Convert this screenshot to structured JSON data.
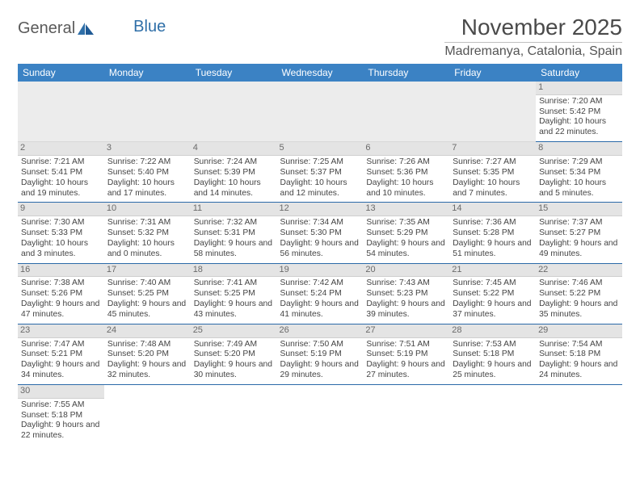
{
  "logo": {
    "text1": "General",
    "text2": "Blue"
  },
  "title": "November 2025",
  "location": "Madremanya, Catalonia, Spain",
  "colors": {
    "header_bg": "#3b82c4",
    "header_fg": "#ffffff",
    "daynum_bg": "#e4e4e4",
    "row_divider": "#2b6aa8",
    "blank_bg": "#ececec"
  },
  "day_headers": [
    "Sunday",
    "Monday",
    "Tuesday",
    "Wednesday",
    "Thursday",
    "Friday",
    "Saturday"
  ],
  "weeks": [
    [
      null,
      null,
      null,
      null,
      null,
      null,
      {
        "n": "1",
        "sr": "7:20 AM",
        "ss": "5:42 PM",
        "dl": "10 hours and 22 minutes."
      }
    ],
    [
      {
        "n": "2",
        "sr": "7:21 AM",
        "ss": "5:41 PM",
        "dl": "10 hours and 19 minutes."
      },
      {
        "n": "3",
        "sr": "7:22 AM",
        "ss": "5:40 PM",
        "dl": "10 hours and 17 minutes."
      },
      {
        "n": "4",
        "sr": "7:24 AM",
        "ss": "5:39 PM",
        "dl": "10 hours and 14 minutes."
      },
      {
        "n": "5",
        "sr": "7:25 AM",
        "ss": "5:37 PM",
        "dl": "10 hours and 12 minutes."
      },
      {
        "n": "6",
        "sr": "7:26 AM",
        "ss": "5:36 PM",
        "dl": "10 hours and 10 minutes."
      },
      {
        "n": "7",
        "sr": "7:27 AM",
        "ss": "5:35 PM",
        "dl": "10 hours and 7 minutes."
      },
      {
        "n": "8",
        "sr": "7:29 AM",
        "ss": "5:34 PM",
        "dl": "10 hours and 5 minutes."
      }
    ],
    [
      {
        "n": "9",
        "sr": "7:30 AM",
        "ss": "5:33 PM",
        "dl": "10 hours and 3 minutes."
      },
      {
        "n": "10",
        "sr": "7:31 AM",
        "ss": "5:32 PM",
        "dl": "10 hours and 0 minutes."
      },
      {
        "n": "11",
        "sr": "7:32 AM",
        "ss": "5:31 PM",
        "dl": "9 hours and 58 minutes."
      },
      {
        "n": "12",
        "sr": "7:34 AM",
        "ss": "5:30 PM",
        "dl": "9 hours and 56 minutes."
      },
      {
        "n": "13",
        "sr": "7:35 AM",
        "ss": "5:29 PM",
        "dl": "9 hours and 54 minutes."
      },
      {
        "n": "14",
        "sr": "7:36 AM",
        "ss": "5:28 PM",
        "dl": "9 hours and 51 minutes."
      },
      {
        "n": "15",
        "sr": "7:37 AM",
        "ss": "5:27 PM",
        "dl": "9 hours and 49 minutes."
      }
    ],
    [
      {
        "n": "16",
        "sr": "7:38 AM",
        "ss": "5:26 PM",
        "dl": "9 hours and 47 minutes."
      },
      {
        "n": "17",
        "sr": "7:40 AM",
        "ss": "5:25 PM",
        "dl": "9 hours and 45 minutes."
      },
      {
        "n": "18",
        "sr": "7:41 AM",
        "ss": "5:25 PM",
        "dl": "9 hours and 43 minutes."
      },
      {
        "n": "19",
        "sr": "7:42 AM",
        "ss": "5:24 PM",
        "dl": "9 hours and 41 minutes."
      },
      {
        "n": "20",
        "sr": "7:43 AM",
        "ss": "5:23 PM",
        "dl": "9 hours and 39 minutes."
      },
      {
        "n": "21",
        "sr": "7:45 AM",
        "ss": "5:22 PM",
        "dl": "9 hours and 37 minutes."
      },
      {
        "n": "22",
        "sr": "7:46 AM",
        "ss": "5:22 PM",
        "dl": "9 hours and 35 minutes."
      }
    ],
    [
      {
        "n": "23",
        "sr": "7:47 AM",
        "ss": "5:21 PM",
        "dl": "9 hours and 34 minutes."
      },
      {
        "n": "24",
        "sr": "7:48 AM",
        "ss": "5:20 PM",
        "dl": "9 hours and 32 minutes."
      },
      {
        "n": "25",
        "sr": "7:49 AM",
        "ss": "5:20 PM",
        "dl": "9 hours and 30 minutes."
      },
      {
        "n": "26",
        "sr": "7:50 AM",
        "ss": "5:19 PM",
        "dl": "9 hours and 29 minutes."
      },
      {
        "n": "27",
        "sr": "7:51 AM",
        "ss": "5:19 PM",
        "dl": "9 hours and 27 minutes."
      },
      {
        "n": "28",
        "sr": "7:53 AM",
        "ss": "5:18 PM",
        "dl": "9 hours and 25 minutes."
      },
      {
        "n": "29",
        "sr": "7:54 AM",
        "ss": "5:18 PM",
        "dl": "9 hours and 24 minutes."
      }
    ],
    [
      {
        "n": "30",
        "sr": "7:55 AM",
        "ss": "5:18 PM",
        "dl": "9 hours and 22 minutes."
      },
      null,
      null,
      null,
      null,
      null,
      null
    ]
  ],
  "labels": {
    "sunrise": "Sunrise: ",
    "sunset": "Sunset: ",
    "daylight": "Daylight: "
  }
}
